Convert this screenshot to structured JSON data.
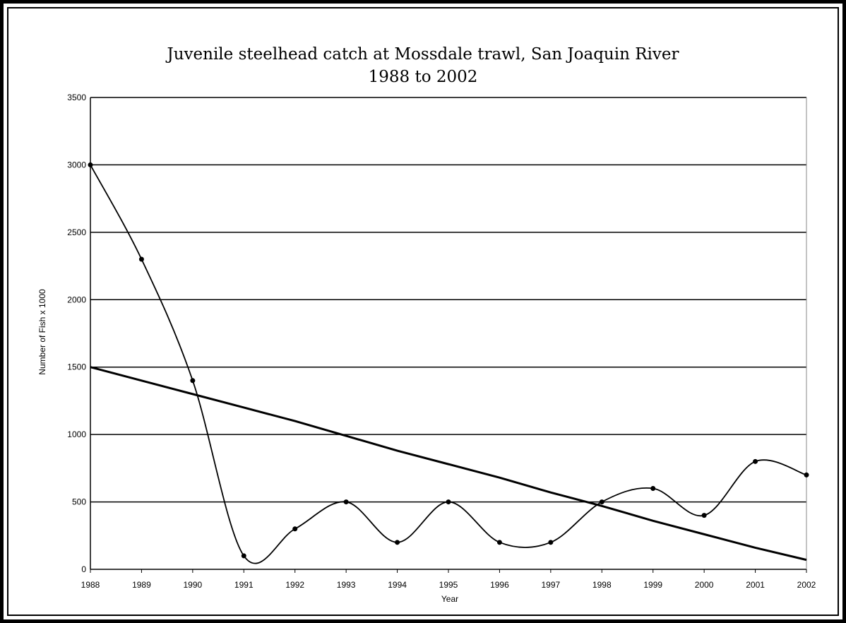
{
  "chart_data": {
    "type": "line",
    "title_line1": "Juvenile steelhead catch at Mossdale trawl, San Joaquin River",
    "title_line2": "1988 to 2002",
    "xlabel": "Year",
    "ylabel": "Number of Fish x 1000",
    "categories": [
      "1988",
      "1989",
      "1990",
      "1991",
      "1992",
      "1993",
      "1994",
      "1995",
      "1996",
      "1997",
      "1998",
      "1999",
      "2000",
      "2001",
      "2002"
    ],
    "ylim": [
      0,
      3500
    ],
    "yticks": [
      0,
      500,
      1000,
      1500,
      2000,
      2500,
      3000,
      3500
    ],
    "grid": true,
    "series": [
      {
        "values": [
          3000,
          2300,
          1400,
          100,
          300,
          500,
          200,
          500,
          200,
          200,
          500,
          600,
          400,
          800,
          700
        ],
        "style": "smooth-curve-with-markers",
        "color": "#000000"
      },
      {
        "values": [
          1500,
          1400,
          1300,
          1200,
          1100,
          990,
          880,
          780,
          680,
          570,
          470,
          360,
          260,
          160,
          70
        ],
        "style": "linear-trend",
        "color": "#000000"
      }
    ]
  }
}
